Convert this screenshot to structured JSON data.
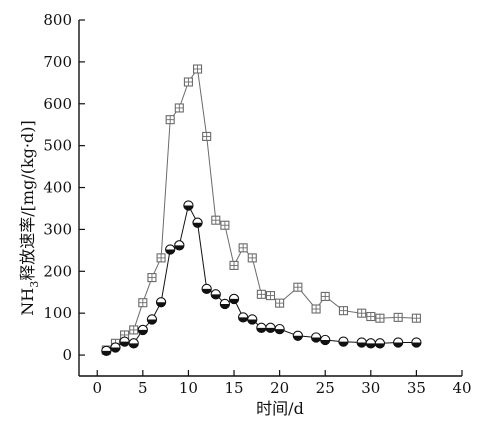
{
  "chart_data": {
    "type": "line",
    "xlabel": "时间/d",
    "ylabel_parts": [
      "NH",
      "3",
      "释放速率/[mg/(kg·d)]"
    ],
    "xlim": [
      -2,
      40
    ],
    "ylim": [
      -50,
      800
    ],
    "xticks": [
      0,
      5,
      10,
      15,
      20,
      25,
      30,
      35,
      40
    ],
    "yticks": [
      0,
      100,
      200,
      300,
      400,
      500,
      600,
      700,
      800
    ],
    "grid": false,
    "series": [
      {
        "marker": "square-cross",
        "color": "#6b6b6b",
        "x": [
          1,
          2,
          3,
          4,
          5,
          6,
          7,
          8,
          9,
          10,
          11,
          12,
          13,
          14,
          15,
          16,
          17,
          18,
          19,
          20,
          22,
          24,
          25,
          27,
          29,
          30,
          31,
          33,
          35
        ],
        "y": [
          12,
          28,
          48,
          60,
          125,
          185,
          232,
          562,
          590,
          652,
          683,
          522,
          322,
          310,
          214,
          256,
          232,
          145,
          142,
          124,
          162,
          110,
          140,
          106,
          100,
          92,
          88,
          90,
          88
        ]
      },
      {
        "marker": "half-filled-circle",
        "color": "#111111",
        "x": [
          1,
          2,
          3,
          4,
          5,
          6,
          7,
          8,
          9,
          10,
          11,
          12,
          13,
          14,
          15,
          16,
          17,
          18,
          19,
          20,
          22,
          24,
          25,
          27,
          29,
          30,
          31,
          33,
          35
        ],
        "y": [
          10,
          18,
          32,
          28,
          60,
          85,
          126,
          252,
          262,
          357,
          316,
          158,
          145,
          122,
          134,
          90,
          85,
          65,
          65,
          62,
          46,
          42,
          36,
          32,
          30,
          28,
          28,
          30,
          30
        ]
      }
    ]
  }
}
